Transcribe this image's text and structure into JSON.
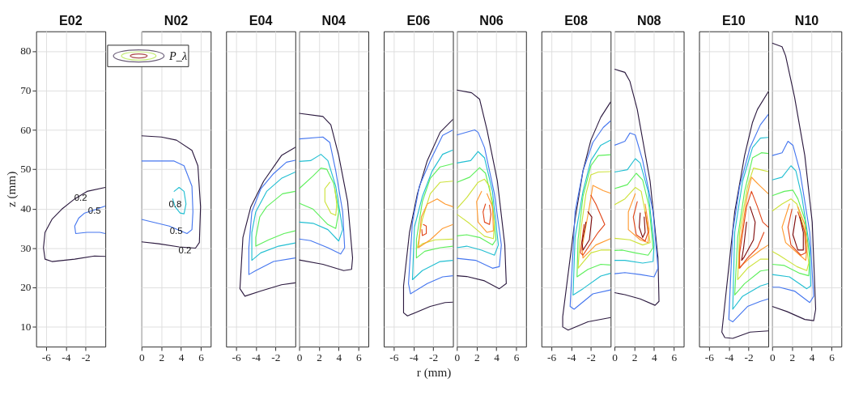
{
  "chart_data": [
    {
      "type": "line",
      "title": "E02",
      "ylabel": "z (mm)",
      "xlim": [
        -7,
        0
      ],
      "xticks": [
        -6,
        -4,
        -2
      ],
      "ylim": [
        5,
        85
      ],
      "yticks": [
        10,
        20,
        30,
        40,
        50,
        60,
        70,
        80
      ],
      "grid": true,
      "annotations": [
        {
          "text": "0.2",
          "x": -2.5,
          "y": 42.8
        },
        {
          "text": "0.5",
          "x": -1.1,
          "y": 39.6
        }
      ],
      "series": [
        {
          "color": "#2d1b40",
          "x": [
            0,
            -1.85,
            -3.1,
            -4.4,
            -5.4,
            -6.1,
            -6.26,
            -6.1,
            -5.4,
            -3.1,
            -1.1,
            0
          ],
          "values": [
            45.4,
            44.4,
            42.5,
            39.9,
            37.3,
            34.0,
            30.1,
            27.2,
            26.6,
            27.2,
            28.0,
            27.9
          ]
        },
        {
          "color": "#4677ef",
          "x": [
            0,
            -1.1,
            -2.1,
            -2.7,
            -3.1,
            -3.0,
            -1.85,
            -0.56,
            0
          ],
          "values": [
            40.7,
            39.7,
            38.9,
            37.6,
            35.6,
            33.7,
            34.0,
            34.0,
            33.7
          ]
        }
      ]
    },
    {
      "type": "line",
      "title": "N02",
      "xlim": [
        0,
        7
      ],
      "xticks": [
        0,
        2,
        4,
        6
      ],
      "ylim": [
        5,
        85
      ],
      "yticks": [
        10,
        20,
        30,
        40,
        50,
        60,
        70,
        80
      ],
      "grid": true,
      "tick_labels": "x",
      "annotations": [
        "P_λ",
        {
          "text": "0.8",
          "x": 3.4,
          "y": 41.2
        },
        {
          "text": "0.5",
          "x": 3.5,
          "y": 34.4
        },
        {
          "text": "0.2",
          "x": 4.4,
          "y": 29.4
        }
      ],
      "series": [
        {
          "color": "#2d1b40",
          "x": [
            0,
            2,
            3.54,
            5.1,
            5.7,
            5.97,
            5.85,
            5.46,
            3.8,
            1.74,
            0
          ],
          "values": [
            58.5,
            58.2,
            57.4,
            54.8,
            50.9,
            40.5,
            31.4,
            30.0,
            30.3,
            31.1,
            31.6
          ]
        },
        {
          "color": "#4677ef",
          "x": [
            0,
            3.3,
            4.3,
            5.1,
            5.2,
            5.1,
            4.6,
            2.8,
            0
          ],
          "values": [
            52.1,
            52.1,
            50.9,
            45.7,
            39.2,
            34.7,
            33.7,
            35.6,
            37.3
          ]
        },
        {
          "color": "#22bfd2",
          "x": [
            3.3,
            3.8,
            4.3,
            4.5,
            4.3,
            3.9,
            3.4,
            3.15
          ],
          "values": [
            44.4,
            45.4,
            44.4,
            41.2,
            38.7,
            38.9,
            40.5,
            42.5
          ]
        }
      ]
    },
    {
      "type": "line",
      "title": "E04",
      "xlim": [
        -7,
        0
      ],
      "xticks": [
        -6,
        -4,
        -2
      ],
      "ylim": [
        5,
        85
      ],
      "yticks": [
        10,
        20,
        30,
        40,
        50,
        60,
        70,
        80
      ],
      "grid": true,
      "tick_labels": "x",
      "series": [
        {
          "color": "#2d1b40",
          "x": [
            0,
            -1.4,
            -3.2,
            -4.5,
            -5.3,
            -5.6,
            -5.1,
            -3.5,
            -1.4,
            0
          ],
          "values": [
            55.6,
            53.5,
            47.0,
            40.5,
            32.7,
            19.7,
            17.8,
            19.1,
            20.7,
            21.2
          ]
        },
        {
          "color": "#4677ef",
          "x": [
            0,
            -0.9,
            -2.2,
            -3.5,
            -4.4,
            -4.7,
            -4.7,
            -4.0,
            -2.2,
            0
          ],
          "values": [
            52.3,
            51.8,
            48.9,
            45.0,
            39.2,
            30.1,
            23.3,
            24.3,
            26.6,
            27.5
          ]
        },
        {
          "color": "#22bfd2",
          "x": [
            0,
            -1.4,
            -2.9,
            -4.0,
            -4.4,
            -4.4,
            -3.5,
            -1.7,
            0
          ],
          "values": [
            49.3,
            47.7,
            44.4,
            39.2,
            34.0,
            26.9,
            28.8,
            30.5,
            31.3
          ]
        },
        {
          "color": "#5def5b",
          "x": [
            0,
            -1.3,
            -2.9,
            -3.6,
            -4.0,
            -4.0,
            -2.7,
            -1.15,
            0
          ],
          "values": [
            44.4,
            43.8,
            40.5,
            37.9,
            32.7,
            30.5,
            32.1,
            33.7,
            34.4
          ]
        }
      ]
    },
    {
      "type": "line",
      "title": "N04",
      "xlim": [
        0,
        7
      ],
      "xticks": [
        0,
        2,
        4,
        6
      ],
      "ylim": [
        5,
        85
      ],
      "yticks": [
        10,
        20,
        30,
        40,
        50,
        60,
        70,
        80
      ],
      "grid": true,
      "tick_labels": "x",
      "series": [
        {
          "color": "#2d1b40",
          "x": [
            0,
            2.4,
            3.2,
            4.0,
            4.9,
            5.4,
            5.3,
            4.5,
            2.4,
            0
          ],
          "values": [
            64.2,
            63.4,
            61.3,
            53.5,
            41.8,
            27.5,
            24.6,
            24.3,
            25.9,
            27.0
          ]
        },
        {
          "color": "#4677ef",
          "x": [
            0,
            2.4,
            3.1,
            3.7,
            4.4,
            4.6,
            4.2,
            2.9,
            1.15,
            0
          ],
          "values": [
            57.7,
            58.2,
            56.8,
            49.6,
            39.2,
            30.1,
            28.5,
            30.1,
            31.9,
            32.3
          ]
        },
        {
          "color": "#22bfd2",
          "x": [
            0,
            1.15,
            2.2,
            2.9,
            3.7,
            4.4,
            4.0,
            2.9,
            1.4,
            0
          ],
          "values": [
            52.0,
            52.2,
            53.8,
            52.2,
            45.7,
            34.7,
            31.8,
            34.7,
            36.3,
            36.6
          ]
        },
        {
          "color": "#5def5b",
          "x": [
            0,
            1.4,
            2.2,
            2.8,
            3.5,
            4.0,
            3.7,
            2.9,
            1.4,
            0
          ],
          "values": [
            45.1,
            48.3,
            50.3,
            50.0,
            46.4,
            39.2,
            35.0,
            36.0,
            39.9,
            41.4
          ]
        },
        {
          "color": "#cde23b",
          "x": [
            3.1,
            2.6,
            2.6,
            3.2,
            3.7,
            3.8,
            3.6
          ],
          "values": [
            46.7,
            45.1,
            41.8,
            38.9,
            38.3,
            41.2,
            45.1
          ]
        }
      ]
    },
    {
      "type": "line",
      "title": "E06",
      "xlabel": "r (mm)",
      "xlim": [
        -7,
        0
      ],
      "xticks": [
        -6,
        -4,
        -2
      ],
      "ylim": [
        5,
        85
      ],
      "yticks": [
        10,
        20,
        30,
        40,
        50,
        60,
        70,
        80
      ],
      "grid": true,
      "tick_labels": "x",
      "series": [
        {
          "color": "#2d1b40",
          "x": [
            0,
            -1.3,
            -2.6,
            -3.6,
            -4.4,
            -5.0,
            -5.0,
            -4.6,
            -2.3,
            -0.8,
            0
          ],
          "values": [
            62.7,
            59.4,
            52.2,
            43.8,
            34.0,
            20.4,
            13.6,
            12.8,
            15.2,
            16.2,
            16.3
          ]
        },
        {
          "color": "#4677ef",
          "x": [
            0,
            -1.05,
            -2.3,
            -3.4,
            -4.1,
            -4.5,
            -4.3,
            -2.6,
            -1.05,
            0
          ],
          "values": [
            60.0,
            58.6,
            52.2,
            45.7,
            36.6,
            21.0,
            18.4,
            21.0,
            22.7,
            23.0
          ]
        },
        {
          "color": "#22bfd2",
          "x": [
            0,
            -1.05,
            -2.1,
            -3.1,
            -3.9,
            -4.1,
            -3.1,
            -1.3,
            0
          ],
          "values": [
            54.9,
            53.8,
            49.6,
            43.1,
            35.3,
            22.0,
            24.3,
            26.6,
            26.9
          ]
        },
        {
          "color": "#5def5b",
          "x": [
            0,
            -1.3,
            -2.3,
            -3.1,
            -3.7,
            -3.7,
            -2.85,
            -1.3,
            0
          ],
          "values": [
            51.4,
            50.6,
            47.7,
            41.8,
            32.1,
            27.5,
            29.2,
            30.1,
            30.5
          ]
        },
        {
          "color": "#cde23b",
          "x": [
            0,
            -1.3,
            -2.3,
            -3.1,
            -3.6,
            -3.1,
            -1.8,
            0
          ],
          "values": [
            47.0,
            46.7,
            43.8,
            37.3,
            30.1,
            31.1,
            32.1,
            32.3
          ]
        },
        {
          "color": "#ff9a30",
          "x": [
            0,
            -0.8,
            -1.6,
            -2.6,
            -3.2,
            -3.5,
            -2.3,
            -1.05,
            0
          ],
          "values": [
            40.5,
            41.2,
            42.5,
            41.2,
            37.9,
            30.1,
            32.1,
            35.0,
            36.0
          ]
        },
        {
          "color": "#e2481b",
          "x": [
            -3.0,
            -2.7,
            -2.7,
            -3.1,
            -3.15
          ],
          "values": [
            36.0,
            35.6,
            33.7,
            33.2,
            34.7
          ]
        }
      ]
    },
    {
      "type": "line",
      "title": "N06",
      "xlim": [
        0,
        7
      ],
      "xticks": [
        0,
        2,
        4,
        6
      ],
      "ylim": [
        5,
        85
      ],
      "yticks": [
        10,
        20,
        30,
        40,
        50,
        60,
        70,
        80
      ],
      "grid": true,
      "tick_labels": "x",
      "series": [
        {
          "color": "#2d1b40",
          "x": [
            0,
            1.5,
            2.3,
            3.05,
            4.1,
            4.85,
            5.0,
            4.3,
            2.8,
            1.0,
            0
          ],
          "values": [
            70.1,
            69.4,
            67.8,
            60.0,
            47.0,
            30.8,
            21.0,
            19.7,
            21.7,
            22.8,
            23.0
          ]
        },
        {
          "color": "#4677ef",
          "x": [
            0,
            1.8,
            2.15,
            2.8,
            3.8,
            4.5,
            4.3,
            3.6,
            1.9,
            0
          ],
          "values": [
            58.7,
            60.0,
            59.4,
            55.5,
            43.8,
            30.8,
            25.3,
            24.9,
            26.9,
            27.4
          ]
        },
        {
          "color": "#22bfd2",
          "x": [
            0,
            1.4,
            2.15,
            2.8,
            3.6,
            4.2,
            3.8,
            2.5,
            1.0,
            0
          ],
          "values": [
            51.6,
            52.2,
            54.5,
            52.9,
            44.4,
            30.8,
            28.2,
            29.5,
            30.5,
            30.1
          ]
        },
        {
          "color": "#5def5b",
          "x": [
            0,
            1.3,
            2.3,
            2.9,
            3.6,
            3.95,
            3.6,
            2.3,
            1.0,
            0
          ],
          "values": [
            46.7,
            48.0,
            50.4,
            49.0,
            41.8,
            32.1,
            30.8,
            32.7,
            33.4,
            33.1
          ]
        },
        {
          "color": "#cde23b",
          "x": [
            0,
            1.0,
            2.15,
            2.8,
            3.3,
            3.8,
            3.7,
            2.8,
            1.26,
            0
          ],
          "values": [
            40.0,
            42.8,
            46.7,
            47.5,
            45.7,
            36.6,
            32.4,
            33.0,
            36.3,
            38.6
          ]
        },
        {
          "color": "#ff9a30",
          "x": [
            2.5,
            2.0,
            2.15,
            3.05,
            3.7,
            3.6,
            3.05
          ],
          "values": [
            44.4,
            41.8,
            36.6,
            34.0,
            34.4,
            40.5,
            43.8
          ]
        },
        {
          "color": "#e2481b",
          "x": [
            2.9,
            2.65,
            2.8,
            3.3,
            3.45,
            3.3
          ],
          "values": [
            41.2,
            39.2,
            36.6,
            36.0,
            38.6,
            40.9
          ]
        }
      ]
    },
    {
      "type": "line",
      "title": "E08",
      "xlim": [
        -7,
        0
      ],
      "xticks": [
        -6,
        -4,
        -2
      ],
      "ylim": [
        5,
        85
      ],
      "yticks": [
        10,
        20,
        30,
        40,
        50,
        60,
        70,
        80
      ],
      "grid": true,
      "tick_labels": "x",
      "series": [
        {
          "color": "#2d1b40",
          "x": [
            0,
            -1.0,
            -2.0,
            -2.8,
            -3.6,
            -4.85,
            -4.85,
            -4.3,
            -2.3,
            0
          ],
          "values": [
            67.1,
            63.2,
            57.4,
            49.6,
            37.3,
            12.6,
            10.0,
            9.2,
            11.3,
            12.4
          ]
        },
        {
          "color": "#4677ef",
          "x": [
            0,
            -0.75,
            -1.8,
            -2.8,
            -3.6,
            -4.1,
            -3.7,
            -1.8,
            0
          ],
          "values": [
            62.3,
            60.6,
            56.8,
            49.6,
            39.2,
            15.2,
            14.5,
            18.4,
            19.4
          ]
        },
        {
          "color": "#22bfd2",
          "x": [
            0,
            -1.0,
            -2.0,
            -2.8,
            -3.6,
            -3.8,
            -2.8,
            -1.0,
            0
          ],
          "values": [
            57.4,
            56.1,
            52.2,
            44.4,
            32.7,
            18.1,
            19.7,
            22.9,
            23.6
          ]
        },
        {
          "color": "#5def5b",
          "x": [
            0,
            -1.26,
            -2.0,
            -2.8,
            -3.3,
            -3.4,
            -2.3,
            -1.0,
            0
          ],
          "values": [
            53.7,
            53.5,
            50.9,
            43.1,
            32.1,
            22.7,
            24.6,
            25.9,
            25.7
          ]
        },
        {
          "color": "#cde23b",
          "x": [
            0,
            -1.26,
            -2.0,
            -2.5,
            -3.05,
            -3.3,
            -2.0,
            -1.0,
            0
          ],
          "values": [
            49.4,
            49.3,
            48.6,
            43.8,
            34.0,
            24.9,
            28.8,
            29.5,
            29.5
          ]
        },
        {
          "color": "#ff9a30",
          "x": [
            0,
            -0.75,
            -1.8,
            -2.15,
            -2.9,
            -2.8,
            -1.5,
            0
          ],
          "values": [
            43.9,
            44.6,
            45.9,
            40.5,
            30.1,
            27.5,
            30.8,
            32.4
          ]
        },
        {
          "color": "#e2481b",
          "x": [
            -2.0,
            -1.5,
            -0.6,
            -1.26,
            -2.3,
            -2.8,
            -3.05,
            -2.7
          ],
          "values": [
            43.4,
            41.2,
            36.0,
            34.0,
            30.1,
            28.2,
            28.8,
            36.0
          ]
        },
        {
          "color": "#800d0d",
          "x": [
            -2.3,
            -1.9,
            -2.15,
            -2.8,
            -2.9,
            -2.5
          ],
          "values": [
            39.2,
            37.9,
            32.1,
            29.5,
            31.4,
            36.6
          ]
        }
      ]
    },
    {
      "type": "line",
      "title": "N08",
      "xlim": [
        0,
        7
      ],
      "xticks": [
        0,
        2,
        4,
        6
      ],
      "ylim": [
        5,
        85
      ],
      "yticks": [
        10,
        20,
        30,
        40,
        50,
        60,
        70,
        80
      ],
      "grid": true,
      "tick_labels": "x",
      "series": [
        {
          "color": "#2d1b40",
          "x": [
            0,
            1.05,
            1.56,
            2.3,
            3.6,
            4.4,
            4.5,
            4.1,
            2.6,
            1.05,
            0
          ],
          "values": [
            75.4,
            74.6,
            72.3,
            65.2,
            47.0,
            27.5,
            16.5,
            15.5,
            17.1,
            18.2,
            18.7
          ]
        },
        {
          "color": "#4677ef",
          "x": [
            0,
            1.05,
            1.56,
            2.1,
            2.85,
            3.9,
            4.4,
            4.0,
            2.6,
            1.05,
            0
          ],
          "values": [
            56.1,
            57.1,
            59.2,
            58.7,
            52.2,
            39.2,
            24.9,
            22.7,
            23.3,
            23.8,
            23.5
          ]
        },
        {
          "color": "#22bfd2",
          "x": [
            0,
            1.3,
            2.1,
            2.6,
            3.4,
            4.0,
            3.9,
            2.85,
            1.05,
            0
          ],
          "values": [
            49.3,
            49.9,
            52.7,
            51.6,
            44.4,
            30.8,
            26.6,
            26.2,
            26.9,
            26.9
          ]
        },
        {
          "color": "#5def5b",
          "x": [
            0,
            1.3,
            2.2,
            2.85,
            3.5,
            3.9,
            3.4,
            2.1,
            0.8,
            0
          ],
          "values": [
            45.1,
            46.1,
            49.0,
            47.3,
            40.5,
            30.1,
            28.2,
            28.8,
            29.5,
            29.4
          ]
        },
        {
          "color": "#cde23b",
          "x": [
            0,
            1.05,
            2.1,
            2.7,
            3.2,
            3.6,
            2.85,
            1.56,
            0
          ],
          "values": [
            41.0,
            42.5,
            45.4,
            44.4,
            37.9,
            31.4,
            30.8,
            32.1,
            32.5
          ]
        },
        {
          "color": "#ff9a30",
          "x": [
            2.1,
            1.4,
            1.4,
            2.6,
            3.4,
            3.5,
            3.1
          ],
          "values": [
            43.8,
            39.2,
            34.7,
            32.1,
            31.4,
            34.7,
            41.2
          ]
        },
        {
          "color": "#e2481b",
          "x": [
            2.3,
            1.9,
            2.2,
            3.1,
            3.4,
            3.1
          ],
          "values": [
            41.8,
            37.9,
            33.4,
            31.8,
            34.0,
            39.2
          ]
        },
        {
          "color": "#800d0d",
          "x": [
            2.6,
            2.5,
            2.85,
            3.1,
            3.0
          ],
          "values": [
            38.9,
            35.3,
            32.7,
            34.0,
            37.9
          ]
        }
      ]
    },
    {
      "type": "line",
      "title": "E10",
      "xlim": [
        -7,
        0
      ],
      "xticks": [
        -6,
        -4,
        -2
      ],
      "ylim": [
        5,
        85
      ],
      "yticks": [
        10,
        20,
        30,
        40,
        50,
        60,
        70,
        80
      ],
      "grid": true,
      "tick_labels": "x",
      "series": [
        {
          "color": "#2d1b40",
          "x": [
            0,
            -1.1,
            -1.6,
            -2.4,
            -3.4,
            -4.7,
            -4.4,
            -3.6,
            -1.85,
            0
          ],
          "values": [
            69.7,
            65.2,
            61.9,
            53.5,
            39.2,
            8.7,
            7.3,
            7.1,
            8.7,
            9.0
          ]
        },
        {
          "color": "#4677ef",
          "x": [
            0,
            -0.8,
            -1.85,
            -2.9,
            -3.6,
            -4.0,
            -3.6,
            -2.1,
            -0.8,
            0
          ],
          "values": [
            63.9,
            61.3,
            55.5,
            45.7,
            34.0,
            11.9,
            11.3,
            15.2,
            16.5,
            17.1
          ]
        },
        {
          "color": "#22bfd2",
          "x": [
            0,
            -0.8,
            -1.6,
            -2.6,
            -3.4,
            -3.6,
            -2.6,
            -0.8,
            0
          ],
          "values": [
            58.1,
            57.9,
            55.5,
            47.0,
            34.0,
            14.5,
            17.8,
            20.4,
            21.0
          ]
        },
        {
          "color": "#5def5b",
          "x": [
            0,
            -0.7,
            -1.6,
            -2.4,
            -3.1,
            -3.4,
            -2.4,
            -0.8,
            0
          ],
          "values": [
            54.0,
            54.2,
            52.9,
            44.4,
            32.7,
            18.1,
            21.0,
            24.2,
            24.5
          ]
        },
        {
          "color": "#cde23b",
          "x": [
            0,
            -0.8,
            -1.5,
            -2.1,
            -2.9,
            -3.1,
            -2.1,
            -0.8,
            0
          ],
          "values": [
            49.4,
            49.9,
            50.3,
            45.7,
            34.0,
            22.0,
            24.9,
            27.2,
            27.2
          ]
        },
        {
          "color": "#ff9a30",
          "x": [
            0,
            -0.8,
            -1.33,
            -1.7,
            -2.1,
            -2.9,
            -3.0,
            -1.85,
            -0.8,
            0
          ],
          "values": [
            43.8,
            45.7,
            47.0,
            48.0,
            43.8,
            30.8,
            24.9,
            27.5,
            29.5,
            30.8
          ]
        },
        {
          "color": "#e2481b",
          "x": [
            0,
            -0.56,
            -1.1,
            -1.7,
            -2.2,
            -2.9,
            -2.9,
            -2.1,
            -1.1,
            -0.44
          ],
          "values": [
            35.3,
            36.6,
            40.5,
            44.4,
            40.5,
            28.8,
            24.9,
            27.5,
            30.1,
            34.0
          ]
        },
        {
          "color": "#800d0d",
          "x": [
            -1.85,
            -1.33,
            -1.5,
            -2.5,
            -2.7,
            -2.5,
            -2.2
          ],
          "values": [
            40.5,
            36.6,
            32.1,
            27.5,
            26.9,
            30.1,
            36.6
          ]
        }
      ]
    },
    {
      "type": "line",
      "title": "N10",
      "xlim": [
        0,
        7
      ],
      "xticks": [
        0,
        2,
        4,
        6
      ],
      "ylim": [
        5,
        85
      ],
      "yticks": [
        10,
        20,
        30,
        40,
        50,
        60,
        70,
        80
      ],
      "grid": true,
      "tick_labels": "x",
      "series": [
        {
          "color": "#2d1b40",
          "x": [
            0,
            1.0,
            1.36,
            2.26,
            3.3,
            4.05,
            4.4,
            4.2,
            3.3,
            1.5,
            0
          ],
          "values": [
            82.0,
            81.1,
            78.8,
            68.4,
            53.5,
            36.6,
            14.5,
            11.6,
            11.9,
            13.9,
            15.2
          ]
        },
        {
          "color": "#4677ef",
          "x": [
            0,
            1.0,
            1.6,
            2.1,
            2.8,
            3.8,
            4.2,
            3.8,
            2.26,
            0.7,
            0
          ],
          "values": [
            53.5,
            54.2,
            57.1,
            56.1,
            49.6,
            34.0,
            17.8,
            16.2,
            19.1,
            20.1,
            20.1
          ]
        },
        {
          "color": "#22bfd2",
          "x": [
            0,
            1.0,
            1.9,
            2.4,
            3.0,
            3.8,
            3.9,
            3.5,
            1.75,
            0
          ],
          "values": [
            47.3,
            48.0,
            50.9,
            49.6,
            43.1,
            30.1,
            20.4,
            19.7,
            22.7,
            23.3
          ]
        },
        {
          "color": "#5def5b",
          "x": [
            0,
            1.23,
            2.1,
            2.6,
            3.3,
            3.8,
            3.7,
            2.8,
            1.23,
            0
          ],
          "values": [
            43.3,
            44.4,
            44.7,
            42.5,
            37.3,
            27.5,
            23.0,
            23.6,
            25.6,
            25.9
          ]
        },
        {
          "color": "#cde23b",
          "x": [
            0,
            1.0,
            1.9,
            2.5,
            3.2,
            3.7,
            3.5,
            2.5,
            0.7,
            0
          ],
          "values": [
            39.4,
            41.2,
            42.5,
            41.2,
            35.3,
            26.2,
            24.3,
            25.3,
            28.2,
            29.2
          ]
        },
        {
          "color": "#ff9a30",
          "x": [
            1.75,
            1.0,
            1.36,
            2.8,
            3.4,
            3.55,
            3.3,
            2.6
          ],
          "values": [
            41.2,
            35.3,
            31.4,
            28.2,
            26.9,
            30.8,
            36.0,
            40.5
          ]
        },
        {
          "color": "#e2481b",
          "x": [
            2.0,
            1.6,
            1.9,
            2.9,
            3.4,
            3.3,
            2.6
          ],
          "values": [
            39.9,
            35.3,
            30.8,
            28.2,
            28.8,
            34.0,
            39.2
          ]
        },
        {
          "color": "#800d0d",
          "x": [
            2.4,
            2.1,
            2.6,
            3.15,
            3.15,
            2.8
          ],
          "values": [
            38.3,
            33.4,
            29.5,
            29.5,
            34.0,
            37.9
          ]
        }
      ]
    }
  ]
}
